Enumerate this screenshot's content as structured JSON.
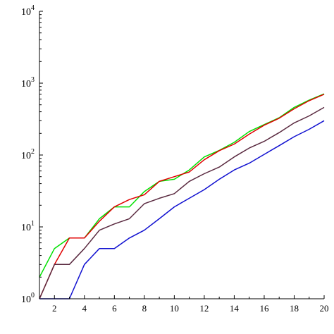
{
  "chart_data": {
    "type": "line",
    "x": [
      1,
      2,
      3,
      4,
      5,
      6,
      7,
      8,
      9,
      10,
      11,
      12,
      13,
      14,
      15,
      16,
      17,
      18,
      19,
      20
    ],
    "x_ticks": [
      "2",
      "4",
      "6",
      "8",
      "10",
      "12",
      "14",
      "16",
      "18",
      "20"
    ],
    "x_tick_values": [
      2,
      4,
      6,
      8,
      10,
      12,
      14,
      16,
      18,
      20
    ],
    "y_tick_values": [
      1,
      10,
      100,
      1000,
      10000
    ],
    "y_tick_labels": [
      {
        "base": "10",
        "exp": "0"
      },
      {
        "base": "10",
        "exp": "1"
      },
      {
        "base": "10",
        "exp": "2"
      },
      {
        "base": "10",
        "exp": "3"
      },
      {
        "base": "10",
        "exp": "4"
      }
    ],
    "xlim": [
      1,
      20
    ],
    "ylim": [
      1,
      10000
    ],
    "y_scale": "log",
    "grid": false,
    "legend": "none",
    "series": [
      {
        "color": "#00e000",
        "values": [
          2,
          5,
          7,
          7,
          13,
          19,
          19,
          31,
          43,
          46,
          62,
          94,
          116,
          150,
          212,
          265,
          330,
          460,
          580,
          710
        ]
      },
      {
        "color": "#e00000",
        "values": [
          1,
          3,
          7,
          7,
          12,
          19,
          24,
          28,
          43,
          50,
          58,
          86,
          115,
          142,
          195,
          260,
          325,
          440,
          570,
          700
        ]
      },
      {
        "color": "#5a2a40",
        "values": [
          1,
          3,
          3,
          5,
          9,
          11,
          13,
          21,
          25,
          29,
          43,
          55,
          68,
          94,
          125,
          155,
          205,
          280,
          350,
          460
        ]
      },
      {
        "color": "#1010d0",
        "values": [
          1,
          1,
          1,
          3,
          5,
          5,
          7,
          9,
          13,
          19,
          25,
          33,
          46,
          62,
          77,
          102,
          135,
          180,
          228,
          300
        ]
      }
    ]
  }
}
